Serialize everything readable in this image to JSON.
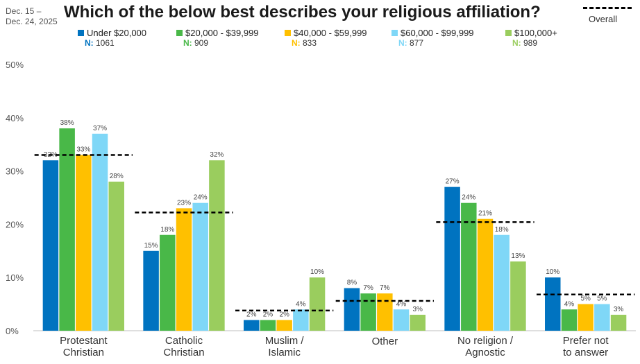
{
  "header": {
    "date_range": [
      "Dec. 15 –",
      "Dec. 24, 2025"
    ],
    "overall_label": "Overall"
  },
  "chart_data": {
    "type": "bar",
    "title": "Which of the below best describes your religious affiliation?",
    "categories": [
      [
        "Protestant",
        "Christian"
      ],
      [
        "Catholic",
        "Christian"
      ],
      [
        "Muslim /",
        "Islamic"
      ],
      [
        "Other"
      ],
      [
        "No religion /",
        "Agnostic"
      ],
      [
        "Prefer not",
        "to answer"
      ]
    ],
    "series": [
      {
        "name": "Under $20,000",
        "n_label": "N:",
        "n": "1061",
        "color": "#0073C0",
        "values": [
          32,
          15,
          2,
          8,
          27,
          10
        ]
      },
      {
        "name": "$20,000 - $39,999",
        "n_label": "N:",
        "n": "909",
        "color": "#49B848",
        "values": [
          38,
          18,
          2,
          7,
          24,
          4
        ]
      },
      {
        "name": "$40,000 - $59,999",
        "n_label": "N:",
        "n": "833",
        "color": "#FFC000",
        "values": [
          33,
          23,
          2,
          7,
          21,
          5
        ]
      },
      {
        "name": "$60,000 - $99,999",
        "n_label": "N:",
        "n": "877",
        "color": "#7FD7F7",
        "values": [
          37,
          24,
          4,
          4,
          18,
          5
        ]
      },
      {
        "name": "$100,000+",
        "n_label": "N:",
        "n": "989",
        "color": "#9ACD5E",
        "values": [
          28,
          32,
          10,
          3,
          13,
          3
        ]
      }
    ],
    "data_labels": [
      [
        "32%",
        "15%",
        "2%",
        "8%",
        "27%",
        "10%"
      ],
      [
        "38%",
        "18%",
        "2%",
        "7%",
        "24%",
        "4%"
      ],
      [
        "33%",
        "23%",
        "2%",
        "7%",
        "21%",
        "5%"
      ],
      [
        "37%",
        "24%",
        "4%",
        "4%",
        "18%",
        "5%"
      ],
      [
        "28%",
        "32%",
        "10%",
        "3%",
        "13%",
        "3%"
      ]
    ],
    "overall": [
      33,
      22.2,
      3.8,
      5.6,
      20.4,
      6.8
    ],
    "ylim": [
      0,
      50
    ],
    "yticks": [
      0,
      10,
      20,
      30,
      40,
      50
    ],
    "ytick_labels": [
      "0%",
      "10%",
      "20%",
      "30%",
      "40%",
      "50%"
    ],
    "grid": false,
    "legend_position": "top"
  }
}
